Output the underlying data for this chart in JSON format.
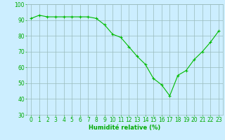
{
  "x": [
    0,
    1,
    2,
    3,
    4,
    5,
    6,
    7,
    8,
    9,
    10,
    11,
    12,
    13,
    14,
    15,
    16,
    17,
    18,
    19,
    20,
    21,
    22,
    23
  ],
  "y": [
    91,
    93,
    92,
    92,
    92,
    92,
    92,
    92,
    91,
    87,
    81,
    79,
    73,
    67,
    62,
    53,
    49,
    42,
    55,
    58,
    65,
    70,
    76,
    83
  ],
  "line_color": "#00bb00",
  "marker": "+",
  "bg_color": "#cceeff",
  "grid_color": "#99bbbb",
  "xlabel": "Humidité relative (%)",
  "xlabel_color": "#00aa00",
  "ylim": [
    30,
    100
  ],
  "yticks": [
    30,
    40,
    50,
    60,
    70,
    80,
    90,
    100
  ],
  "xlim": [
    -0.5,
    23.5
  ],
  "xticks": [
    0,
    1,
    2,
    3,
    4,
    5,
    6,
    7,
    8,
    9,
    10,
    11,
    12,
    13,
    14,
    15,
    16,
    17,
    18,
    19,
    20,
    21,
    22,
    23
  ],
  "tick_color": "#00aa00",
  "axis_label_fontsize": 6,
  "tick_fontsize": 5.5
}
